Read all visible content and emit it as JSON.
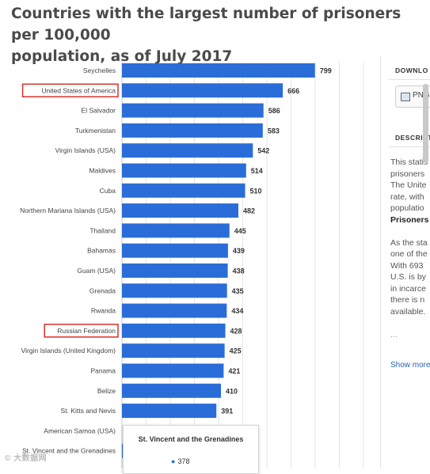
{
  "chart_data": {
    "type": "bar",
    "orientation": "horizontal",
    "title": "Countries with the largest number of prisoners per 100,000 population, as of July 2017",
    "categories": [
      "Seychelles",
      "United States of America",
      "El Salvador",
      "Turkmenistan",
      "Virgin Islands (USA)",
      "Maldives",
      "Cuba",
      "Northern Mariana Islands (USA)",
      "Thailand",
      "Bahamas",
      "Guam (USA)",
      "Grenada",
      "Rwanda",
      "Russian Federation",
      "Virgin Islands (United Kingdom)",
      "Panama",
      "Belize",
      "St. Kitts and Nevis",
      "American Samoa (USA)",
      "St. Vincent and the Grenadines"
    ],
    "values": [
      799,
      666,
      586,
      583,
      542,
      514,
      510,
      482,
      445,
      439,
      438,
      435,
      434,
      428,
      425,
      421,
      410,
      391,
      null,
      378
    ],
    "data_labels": [
      "799",
      "666",
      "586",
      "583",
      "542",
      "514",
      "510",
      "482",
      "445",
      "439",
      "438",
      "435",
      "434",
      "428",
      "425",
      "421",
      "410",
      "391",
      "",
      ""
    ],
    "highlighted": [
      "United States of America",
      "Russian Federation"
    ],
    "bar_color": "#2a6dd8",
    "highlight_color": "#d9302b",
    "grid": true,
    "legend": "none",
    "xlim": [
      0,
      1000
    ]
  },
  "title_line1": "Countries with the largest number of prisoners per 100,000",
  "title_line2": "population, as of July 2017",
  "sidebar": {
    "download_heading": "DOWNLO",
    "png_label": "PNG",
    "description_heading": "DESCRIPT",
    "description_lines": [
      "This statis",
      "prisoners",
      "The Unite",
      "rate, with",
      "populatio"
    ],
    "subheading": "Prisoners",
    "paragraph_lines": [
      "As the sta",
      "one of the",
      "With 693",
      "U.S. is by",
      "in incarce",
      "there is n",
      "available."
    ],
    "faded_text": "...",
    "show_more": "Show more"
  },
  "tooltip": {
    "title": "St. Vincent and the Grenadines",
    "value_label": "378"
  },
  "watermark": "© 大数据网"
}
